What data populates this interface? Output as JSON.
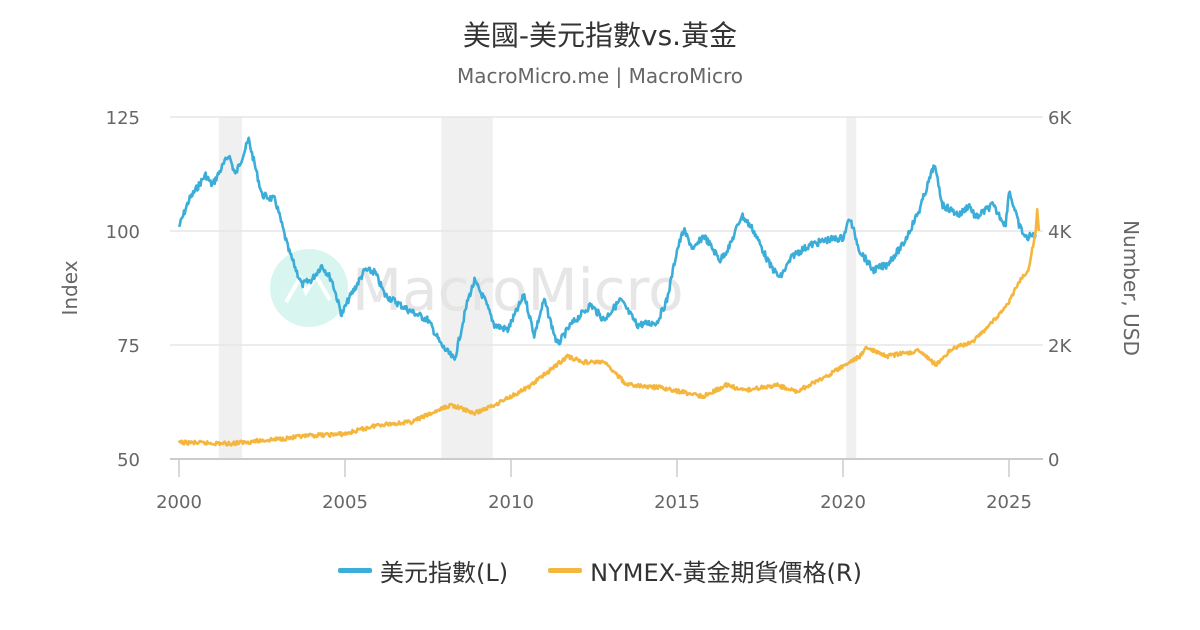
{
  "chart_data": {
    "type": "line",
    "title": "美國-美元指數vs.黃金",
    "subtitle": "MacroMicro.me | MacroMicro",
    "watermark": "MacroMicro",
    "xlim": [
      2000,
      2026
    ],
    "x_ticks": [
      "2000",
      "2005",
      "2010",
      "2015",
      "2020",
      "2025"
    ],
    "y_left": {
      "label": "Index",
      "ylim": [
        50,
        125
      ],
      "ticks": [
        "50",
        "75",
        "100",
        "125"
      ]
    },
    "y_right": {
      "label": "Number, USD",
      "ylim": [
        0,
        6000
      ],
      "ticks": [
        "0",
        "2K",
        "4K",
        "6K"
      ]
    },
    "grid": true,
    "legend_position": "bottom",
    "shaded_periods": [
      [
        2001.2,
        2001.9
      ],
      [
        2007.9,
        2009.45
      ],
      [
        2020.1,
        2020.4
      ]
    ],
    "series": [
      {
        "name": "美元指數(L)",
        "axis": "left",
        "color": "#3badd9",
        "x": [
          2000.0,
          2000.3,
          2000.8,
          2001.0,
          2001.5,
          2001.7,
          2002.1,
          2002.5,
          2002.9,
          2003.3,
          2003.7,
          2004.0,
          2004.3,
          2004.6,
          2004.9,
          2005.1,
          2005.6,
          2005.9,
          2006.2,
          2006.9,
          2007.5,
          2007.9,
          2008.3,
          2008.7,
          2008.9,
          2009.2,
          2009.5,
          2009.9,
          2010.4,
          2010.7,
          2011.0,
          2011.4,
          2011.8,
          2012.4,
          2012.8,
          2013.3,
          2013.8,
          2014.4,
          2014.7,
          2015.0,
          2015.2,
          2015.5,
          2015.8,
          2016.3,
          2016.6,
          2016.95,
          2017.3,
          2017.8,
          2018.1,
          2018.5,
          2019.0,
          2019.5,
          2020.0,
          2020.2,
          2020.5,
          2020.9,
          2021.3,
          2021.8,
          2022.3,
          2022.75,
          2023.0,
          2023.5,
          2023.8,
          2024.0,
          2024.5,
          2024.9,
          2025.0,
          2025.3,
          2025.5,
          2025.8
        ],
        "y": [
          100.9,
          106.8,
          112.3,
          110,
          116.7,
          112.3,
          120,
          107.9,
          106.8,
          95.8,
          88.2,
          89.3,
          92.5,
          89.3,
          81.6,
          84.9,
          91.4,
          91,
          86,
          82.7,
          80.5,
          75,
          71.7,
          84.9,
          89,
          85,
          79.4,
          78.3,
          86,
          77.2,
          84.9,
          75,
          79.4,
          83.8,
          80.5,
          84.9,
          79.4,
          80,
          84.9,
          95.8,
          100.2,
          95.8,
          99.1,
          93.6,
          96.9,
          103.5,
          100.2,
          92.5,
          89.7,
          94.7,
          96.9,
          98,
          98.5,
          102.9,
          95.8,
          91.4,
          92.5,
          96.9,
          104.6,
          114.5,
          105.7,
          103.5,
          105.7,
          102.9,
          105.7,
          101.3,
          109,
          101.3,
          98.5,
          99.2
        ]
      },
      {
        "name": "NYMEX-黃金期貨價格(R)",
        "axis": "right",
        "color": "#f5b63e",
        "x": [
          2000,
          2001.5,
          2003,
          2004,
          2005,
          2006,
          2007,
          2008.2,
          2008.9,
          2009.5,
          2010.5,
          2011.7,
          2012.2,
          2012.8,
          2013.5,
          2014.5,
          2015.8,
          2016.5,
          2017,
          2018,
          2018.6,
          2019.5,
          2020.5,
          2020.7,
          2021.3,
          2022.3,
          2022.8,
          2023.3,
          2023.9,
          2024.4,
          2024.9,
          2025.3,
          2025.6,
          2025.8,
          2025.85,
          2025.9
        ],
        "y": [
          290,
          270,
          350,
          410,
          440,
          600,
          650,
          950,
          800,
          950,
          1250,
          1800,
          1700,
          1700,
          1300,
          1250,
          1100,
          1300,
          1200,
          1300,
          1180,
          1450,
          1800,
          1950,
          1800,
          1900,
          1650,
          1950,
          2050,
          2350,
          2650,
          3100,
          3350,
          4000,
          4350,
          4000
        ]
      }
    ]
  }
}
